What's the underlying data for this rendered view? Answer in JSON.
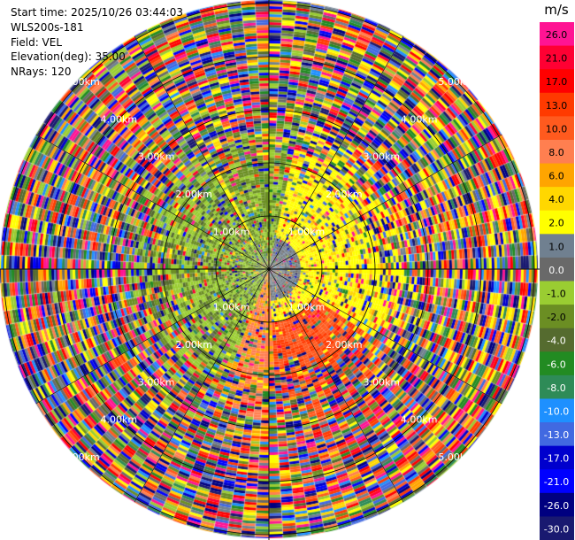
{
  "header": {
    "start_time": "Start time: 2025/10/26 03:44:03",
    "instrument": "WLS200s-181",
    "field": "Field: VEL",
    "elevation": "Elevation(deg): 35.00",
    "nrays": "NRays: 120"
  },
  "chart_data": {
    "type": "heatmap",
    "projection": "polar",
    "title": "",
    "n_rays": 120,
    "range_rings_km": [
      1,
      2,
      3,
      4,
      5
    ],
    "ring_labels": [
      "1.00km",
      "2.00km",
      "3.00km",
      "4.00km",
      "5.00km"
    ],
    "max_range_km": 5.2,
    "colorbar": {
      "unit": "m/s",
      "ticks": [
        "26.0",
        "21.0",
        "17.0",
        "13.0",
        "10.0",
        "8.0",
        "6.0",
        "4.0",
        "2.0",
        "1.0",
        "0.0",
        "-1.0",
        "-2.0",
        "-4.0",
        "-6.0",
        "-8.0",
        "-10.0",
        "-13.0",
        "-17.0",
        "-21.0",
        "-26.0",
        "-30.0"
      ],
      "colors": [
        "#ff1493",
        "#ff0033",
        "#ff0000",
        "#ff3a00",
        "#ff5a1e",
        "#ff7f50",
        "#ffa500",
        "#ffd700",
        "#ffff00",
        "#708090",
        "#696969",
        "#9acd32",
        "#6b8e23",
        "#556b2f",
        "#228b22",
        "#2e8b57",
        "#1e90ff",
        "#4169e1",
        "#0000cd",
        "#0000ff",
        "#000080",
        "#191970"
      ],
      "light_labels": [
        "-13.0",
        "-17.0",
        "-21.0",
        "-26.0",
        "-30.0",
        "0.0",
        "-8.0",
        "-10.0",
        "-6.0",
        "-4.0"
      ]
    }
  }
}
